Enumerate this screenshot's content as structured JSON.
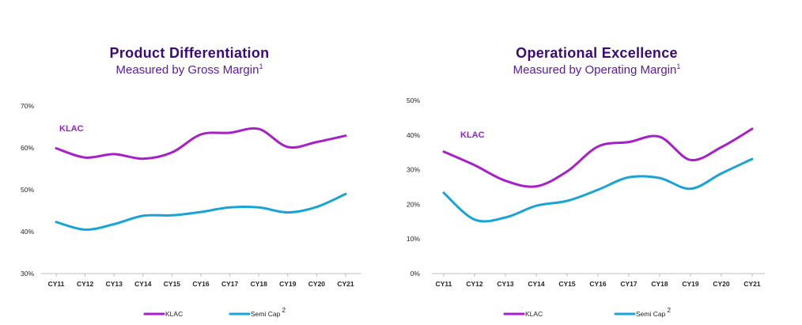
{
  "colors": {
    "title": "#3b0a78",
    "subtitle": "#5a1a9a",
    "klac": "#a81fc9",
    "semi_cap": "#1aa3d6",
    "axis": "#bfbfbf"
  },
  "chart_data": [
    {
      "type": "line",
      "title": "Product Differentiation",
      "subtitle": "Measured by Gross Margin",
      "subtitle_note": "1",
      "categories": [
        "CY11",
        "CY12",
        "CY13",
        "CY14",
        "CY15",
        "CY16",
        "CY17",
        "CY18",
        "CY19",
        "CY20",
        "CY21"
      ],
      "ylim": [
        30,
        70
      ],
      "yticks": [
        {
          "value": 30,
          "label": "30%"
        },
        {
          "value": 40,
          "label": "40%"
        },
        {
          "value": 50,
          "label": "50%"
        },
        {
          "value": 60,
          "label": "60%"
        },
        {
          "value": 70,
          "label": "70%"
        }
      ],
      "series": [
        {
          "name": "KLAC",
          "color": "#a81fc9",
          "values": [
            59.9,
            57.7,
            58.5,
            57.4,
            58.9,
            63.2,
            63.6,
            64.5,
            60.2,
            61.4,
            62.9
          ]
        },
        {
          "name": "Semi Cap",
          "note": "2",
          "color": "#1aa3d6",
          "values": [
            42.3,
            40.5,
            41.8,
            43.8,
            43.9,
            44.7,
            45.8,
            45.8,
            44.6,
            45.9,
            49.0
          ]
        }
      ],
      "annotation": {
        "text": "KLAC"
      },
      "legend": {
        "placement": "bottom",
        "entries": [
          {
            "label": "KLAC",
            "note": ""
          },
          {
            "label": "Semi Cap",
            "note": "2"
          }
        ]
      },
      "grid": false
    },
    {
      "type": "line",
      "title": "Operational Excellence",
      "subtitle": "Measured by Operating Margin",
      "subtitle_note": "1",
      "categories": [
        "CY11",
        "CY12",
        "CY13",
        "CY14",
        "CY15",
        "CY16",
        "CY17",
        "CY18",
        "CY19",
        "CY20",
        "CY21"
      ],
      "ylim": [
        0,
        50
      ],
      "yticks": [
        {
          "value": 0,
          "label": "0%"
        },
        {
          "value": 10,
          "label": "10%"
        },
        {
          "value": 20,
          "label": "20%"
        },
        {
          "value": 30,
          "label": "30%"
        },
        {
          "value": 40,
          "label": "40%"
        },
        {
          "value": 50,
          "label": "50%"
        }
      ],
      "series": [
        {
          "name": "KLAC",
          "color": "#a81fc9",
          "values": [
            35.2,
            31.3,
            26.8,
            25.2,
            29.5,
            36.7,
            38.0,
            39.5,
            32.8,
            36.5,
            41.8
          ]
        },
        {
          "name": "Semi Cap",
          "note": "2",
          "color": "#1aa3d6",
          "values": [
            23.3,
            15.6,
            16.2,
            19.6,
            21.0,
            24.2,
            27.8,
            27.6,
            24.5,
            28.9,
            33.1
          ]
        }
      ],
      "annotation": {
        "text": "KLAC"
      },
      "legend": {
        "placement": "bottom",
        "entries": [
          {
            "label": "KLAC",
            "note": ""
          },
          {
            "label": "Semi Cap",
            "note": "2"
          }
        ]
      },
      "grid": false
    }
  ]
}
